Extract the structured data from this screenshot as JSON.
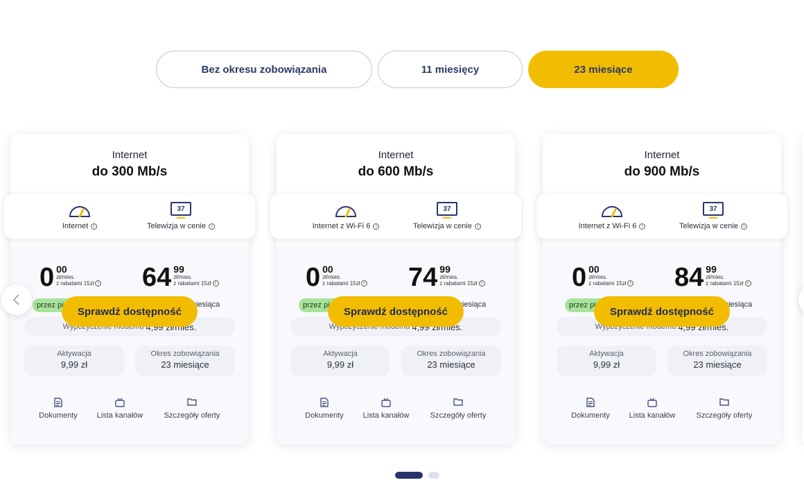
{
  "tabs": [
    {
      "label": "Bez okresu zobowiązania",
      "active": false
    },
    {
      "label": "11 miesięcy",
      "active": false
    },
    {
      "label": "23 miesiące",
      "active": true
    }
  ],
  "colors": {
    "accent": "#f2bd00",
    "navy": "#27356b",
    "promo": "#a8e39c"
  },
  "cards": [
    {
      "category": "Internet",
      "speed": "do 300 Mb/s",
      "features": [
        {
          "icon": "speedometer-icon",
          "label": "Internet"
        },
        {
          "icon": "tv-channels-icon",
          "icon_text": "37",
          "label": "Telewizja w cenie"
        }
      ],
      "price_promo": {
        "int": "0",
        "dec": "00",
        "unit": "zł/mies.",
        "discount": "z rabatami 15zł"
      },
      "promo_badge": "przez pierwszy miesiąc",
      "price_regular": {
        "int": "64",
        "dec": "99",
        "unit": "zł/mies.",
        "discount": "z rabatami 15zł"
      },
      "regular_period": "od 2 do 23 miesiąca",
      "modem_label": "Wypożyczenie modemu",
      "modem_value": "4,99 zł/mies.",
      "activation_label": "Aktywacja",
      "activation_value": "9,99 zł",
      "commitment_label": "Okres zobowiązania",
      "commitment_value": "23 miesiące",
      "links": [
        "Dokumenty",
        "Lista kanałów",
        "Szczegóły oferty"
      ],
      "cta": "Sprawdź dostępność"
    },
    {
      "category": "Internet",
      "speed": "do 600 Mb/s",
      "features": [
        {
          "icon": "speedometer-icon",
          "label": "Internet z Wi-Fi 6"
        },
        {
          "icon": "tv-channels-icon",
          "icon_text": "37",
          "label": "Telewizja w cenie"
        }
      ],
      "price_promo": {
        "int": "0",
        "dec": "00",
        "unit": "zł/mies.",
        "discount": "z rabatami 15zł"
      },
      "promo_badge": "przez pierwszy miesiąc",
      "price_regular": {
        "int": "74",
        "dec": "99",
        "unit": "zł/mies.",
        "discount": "z rabatami 15zł"
      },
      "regular_period": "od 2 do 23 miesiąca",
      "modem_label": "Wypożyczenie modemu",
      "modem_value": "4,99 zł/mies.",
      "activation_label": "Aktywacja",
      "activation_value": "9,99 zł",
      "commitment_label": "Okres zobowiązania",
      "commitment_value": "23 miesiące",
      "links": [
        "Dokumenty",
        "Lista kanałów",
        "Szczegóły oferty"
      ],
      "cta": "Sprawdź dostępność"
    },
    {
      "category": "Internet",
      "speed": "do 900 Mb/s",
      "features": [
        {
          "icon": "speedometer-icon",
          "label": "Internet z Wi-Fi 6"
        },
        {
          "icon": "tv-channels-icon",
          "icon_text": "37",
          "label": "Telewizja w cenie"
        }
      ],
      "price_promo": {
        "int": "0",
        "dec": "00",
        "unit": "zł/mies.",
        "discount": "z rabatami 15zł"
      },
      "promo_badge": "przez pierwszy miesiąc",
      "price_regular": {
        "int": "84",
        "dec": "99",
        "unit": "zł/mies.",
        "discount": "z rabatami 15zł"
      },
      "regular_period": "od 2 do 23 miesiąca",
      "modem_label": "Wypożyczenie modemu",
      "modem_value": "4,99 zł/mies.",
      "activation_label": "Aktywacja",
      "activation_value": "9,99 zł",
      "commitment_label": "Okres zobowiązania",
      "commitment_value": "23 miesiące",
      "links": [
        "Dokumenty",
        "Lista kanałów",
        "Szczegóły oferty"
      ],
      "cta": "Sprawdź dostępność"
    }
  ],
  "carousel": {
    "pages": 2,
    "current": 1
  }
}
